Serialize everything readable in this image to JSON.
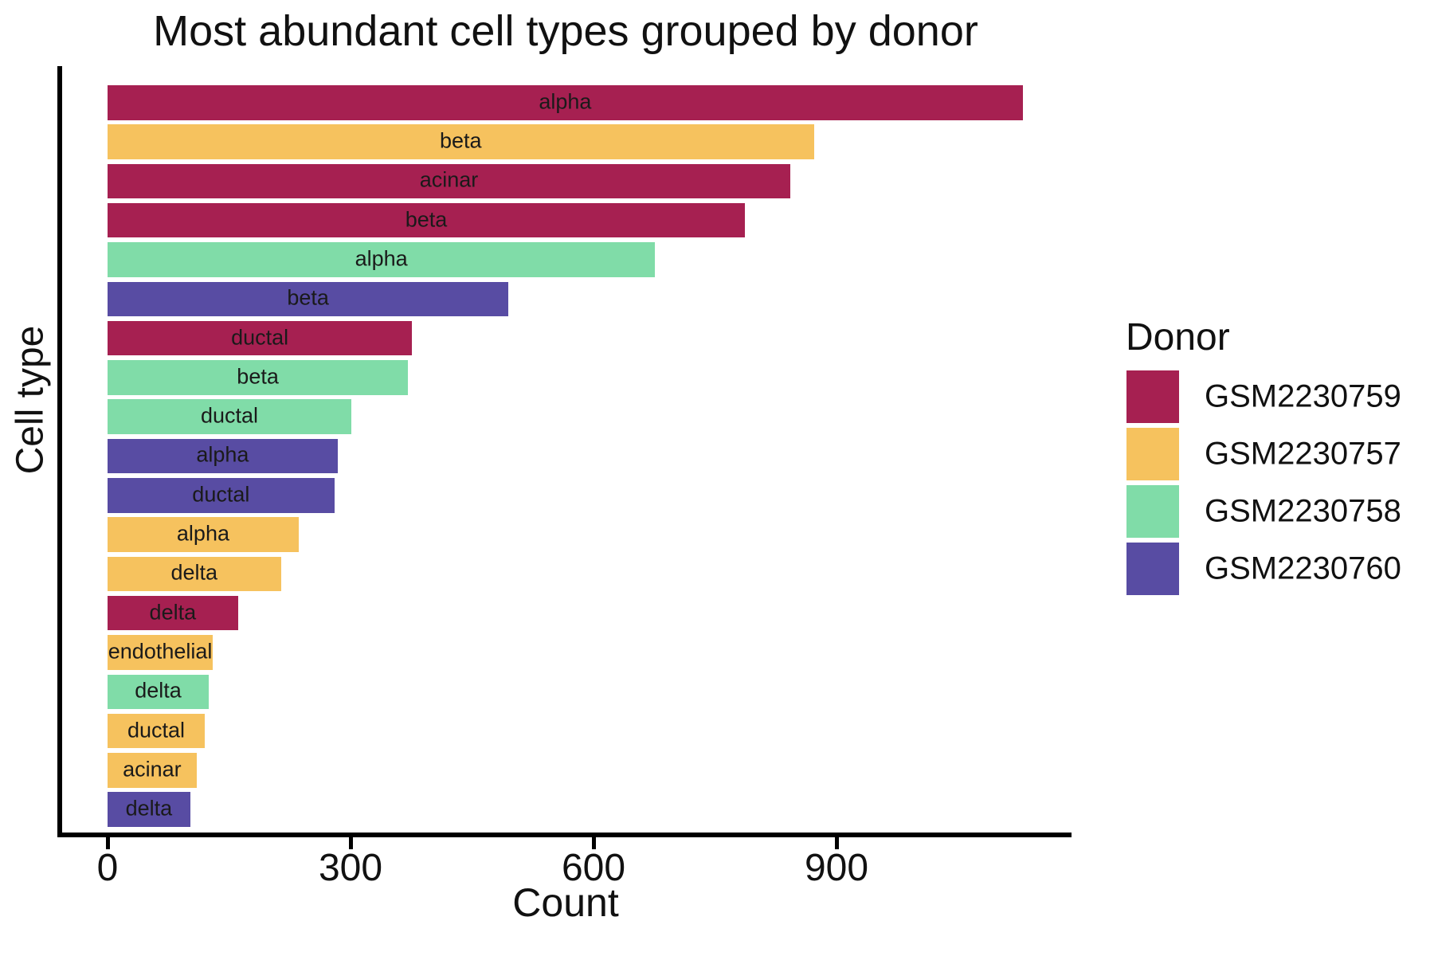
{
  "figure": {
    "background": "#ffffff",
    "text_color": "#111111"
  },
  "chart_data": {
    "type": "bar",
    "orientation": "horizontal",
    "title": "Most abundant cell types grouped by donor",
    "xlabel": "Count",
    "ylabel": "Cell type",
    "x_ticks": [
      0,
      300,
      600,
      900
    ],
    "xlim": [
      -60,
      1190
    ],
    "grid": false,
    "bar_label_position": "center",
    "legend_position": "right",
    "bars": [
      {
        "cell_type": "alpha",
        "donor": "GSM2230759",
        "count": 1130
      },
      {
        "cell_type": "beta",
        "donor": "GSM2230757",
        "count": 872
      },
      {
        "cell_type": "acinar",
        "donor": "GSM2230759",
        "count": 843
      },
      {
        "cell_type": "beta",
        "donor": "GSM2230759",
        "count": 787
      },
      {
        "cell_type": "alpha",
        "donor": "GSM2230758",
        "count": 676
      },
      {
        "cell_type": "beta",
        "donor": "GSM2230760",
        "count": 495
      },
      {
        "cell_type": "ductal",
        "donor": "GSM2230759",
        "count": 376
      },
      {
        "cell_type": "beta",
        "donor": "GSM2230758",
        "count": 371
      },
      {
        "cell_type": "ductal",
        "donor": "GSM2230758",
        "count": 301
      },
      {
        "cell_type": "alpha",
        "donor": "GSM2230760",
        "count": 284
      },
      {
        "cell_type": "ductal",
        "donor": "GSM2230760",
        "count": 280
      },
      {
        "cell_type": "alpha",
        "donor": "GSM2230757",
        "count": 236
      },
      {
        "cell_type": "delta",
        "donor": "GSM2230757",
        "count": 214
      },
      {
        "cell_type": "delta",
        "donor": "GSM2230759",
        "count": 161
      },
      {
        "cell_type": "endothelial",
        "donor": "GSM2230757",
        "count": 130
      },
      {
        "cell_type": "delta",
        "donor": "GSM2230758",
        "count": 125
      },
      {
        "cell_type": "ductal",
        "donor": "GSM2230757",
        "count": 120
      },
      {
        "cell_type": "acinar",
        "donor": "GSM2230757",
        "count": 110
      },
      {
        "cell_type": "delta",
        "donor": "GSM2230760",
        "count": 102
      }
    ],
    "donor_colors": {
      "GSM2230759": "#A62051",
      "GSM2230757": "#F6C25E",
      "GSM2230758": "#80DCA8",
      "GSM2230760": "#584CA3"
    }
  },
  "legend": {
    "title": "Donor",
    "items": [
      {
        "label": "GSM2230759",
        "color": "#A62051"
      },
      {
        "label": "GSM2230757",
        "color": "#F6C25E"
      },
      {
        "label": "GSM2230758",
        "color": "#80DCA8"
      },
      {
        "label": "GSM2230760",
        "color": "#584CA3"
      }
    ]
  }
}
